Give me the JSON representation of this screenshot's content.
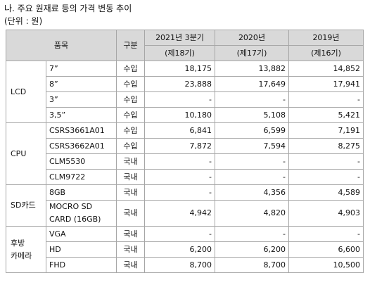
{
  "header": {
    "title": "나. 주요 원재료 등의 가격 변동 추이",
    "unit": "(단위 : 원)"
  },
  "table": {
    "columns": [
      "품목",
      "구분"
    ],
    "periods": [
      {
        "year": "2021년 3분기",
        "term": "(제18기)"
      },
      {
        "year": "2020년",
        "term": "(제17기)"
      },
      {
        "year": "2019년",
        "term": "(제16기)"
      }
    ],
    "groups": [
      {
        "name": "LCD",
        "rows": [
          [
            "7”",
            "수입",
            "18,175",
            "13,882",
            "14,852"
          ],
          [
            "8”",
            "수입",
            "23,888",
            "17,649",
            "17,941"
          ],
          [
            "3”",
            "수입",
            "-",
            "-",
            "-"
          ],
          [
            "3,5”",
            "수입",
            "10,180",
            "5,108",
            "5,421"
          ]
        ]
      },
      {
        "name": "CPU",
        "rows": [
          [
            "CSRS3661A01",
            "수입",
            "6,841",
            "6,599",
            "7,191"
          ],
          [
            "CSRS3662A01",
            "수입",
            "7,872",
            "7,594",
            "8,275"
          ],
          [
            "CLM5530",
            "국내",
            "-",
            "-",
            "-"
          ],
          [
            "CLM9722",
            "국내",
            "-",
            "-",
            "-"
          ]
        ]
      },
      {
        "name": "SD카드",
        "rows": [
          [
            "8GB",
            "국내",
            "-",
            "4,356",
            "4,589"
          ],
          [
            "MOCRO SD\nCARD (16GB)",
            "국내",
            "4,942",
            "4,820",
            "4,903"
          ]
        ]
      },
      {
        "name": "후방\n카메라",
        "rows": [
          [
            "VGA",
            "국내",
            "-",
            "-",
            "-"
          ],
          [
            "HD",
            "국내",
            "6,200",
            "6,200",
            "6,600"
          ],
          [
            "FHD",
            "국내",
            "8,700",
            "8,700",
            "10,500"
          ]
        ]
      }
    ]
  }
}
